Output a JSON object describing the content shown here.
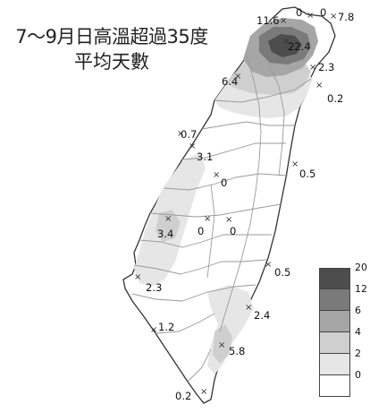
{
  "title": {
    "line1": "7～9月日高溫超過35度",
    "line2": "平均天數"
  },
  "colors": {
    "level_0_2": "#ffffff",
    "level_2_4": "#e6e6e6",
    "level_4_6": "#cfcfcf",
    "level_6_12": "#a6a6a6",
    "level_12_20": "#7a7a7a",
    "level_20_plus": "#4d4d4d",
    "boundary": "#9a9a9a",
    "coast": "#333333"
  },
  "legend": {
    "labels": [
      "20",
      "12",
      "6",
      "4",
      "2",
      "0"
    ]
  },
  "stations": [
    {
      "id": "keelung-area",
      "value": "0"
    },
    {
      "id": "pengjia",
      "value": "7.8"
    },
    {
      "id": "tamsui",
      "value": "11.6"
    },
    {
      "id": "taipei",
      "value": "22.4"
    },
    {
      "id": "yilan-north",
      "value": "2.3"
    },
    {
      "id": "taoyuan",
      "value": "6.4"
    },
    {
      "id": "yilan-su-ao",
      "value": "0.2"
    },
    {
      "id": "hsinchu-coast",
      "value": "0.7"
    },
    {
      "id": "taichung",
      "value": "3.1"
    },
    {
      "id": "central-mountain",
      "value": "0"
    },
    {
      "id": "hualien",
      "value": "0.5"
    },
    {
      "id": "chiayi",
      "value": "3.4"
    },
    {
      "id": "alishan",
      "value": "0"
    },
    {
      "id": "yushan",
      "value": "0"
    },
    {
      "id": "tainan",
      "value": "2.3"
    },
    {
      "id": "chenggong",
      "value": "0.5"
    },
    {
      "id": "taitung",
      "value": "2.4"
    },
    {
      "id": "kaohsiung",
      "value": "1.2"
    },
    {
      "id": "dawu-inland",
      "value": "5.8"
    },
    {
      "id": "hengchun",
      "value": "0.2"
    },
    {
      "id": "top-north",
      "value": "0"
    }
  ]
}
